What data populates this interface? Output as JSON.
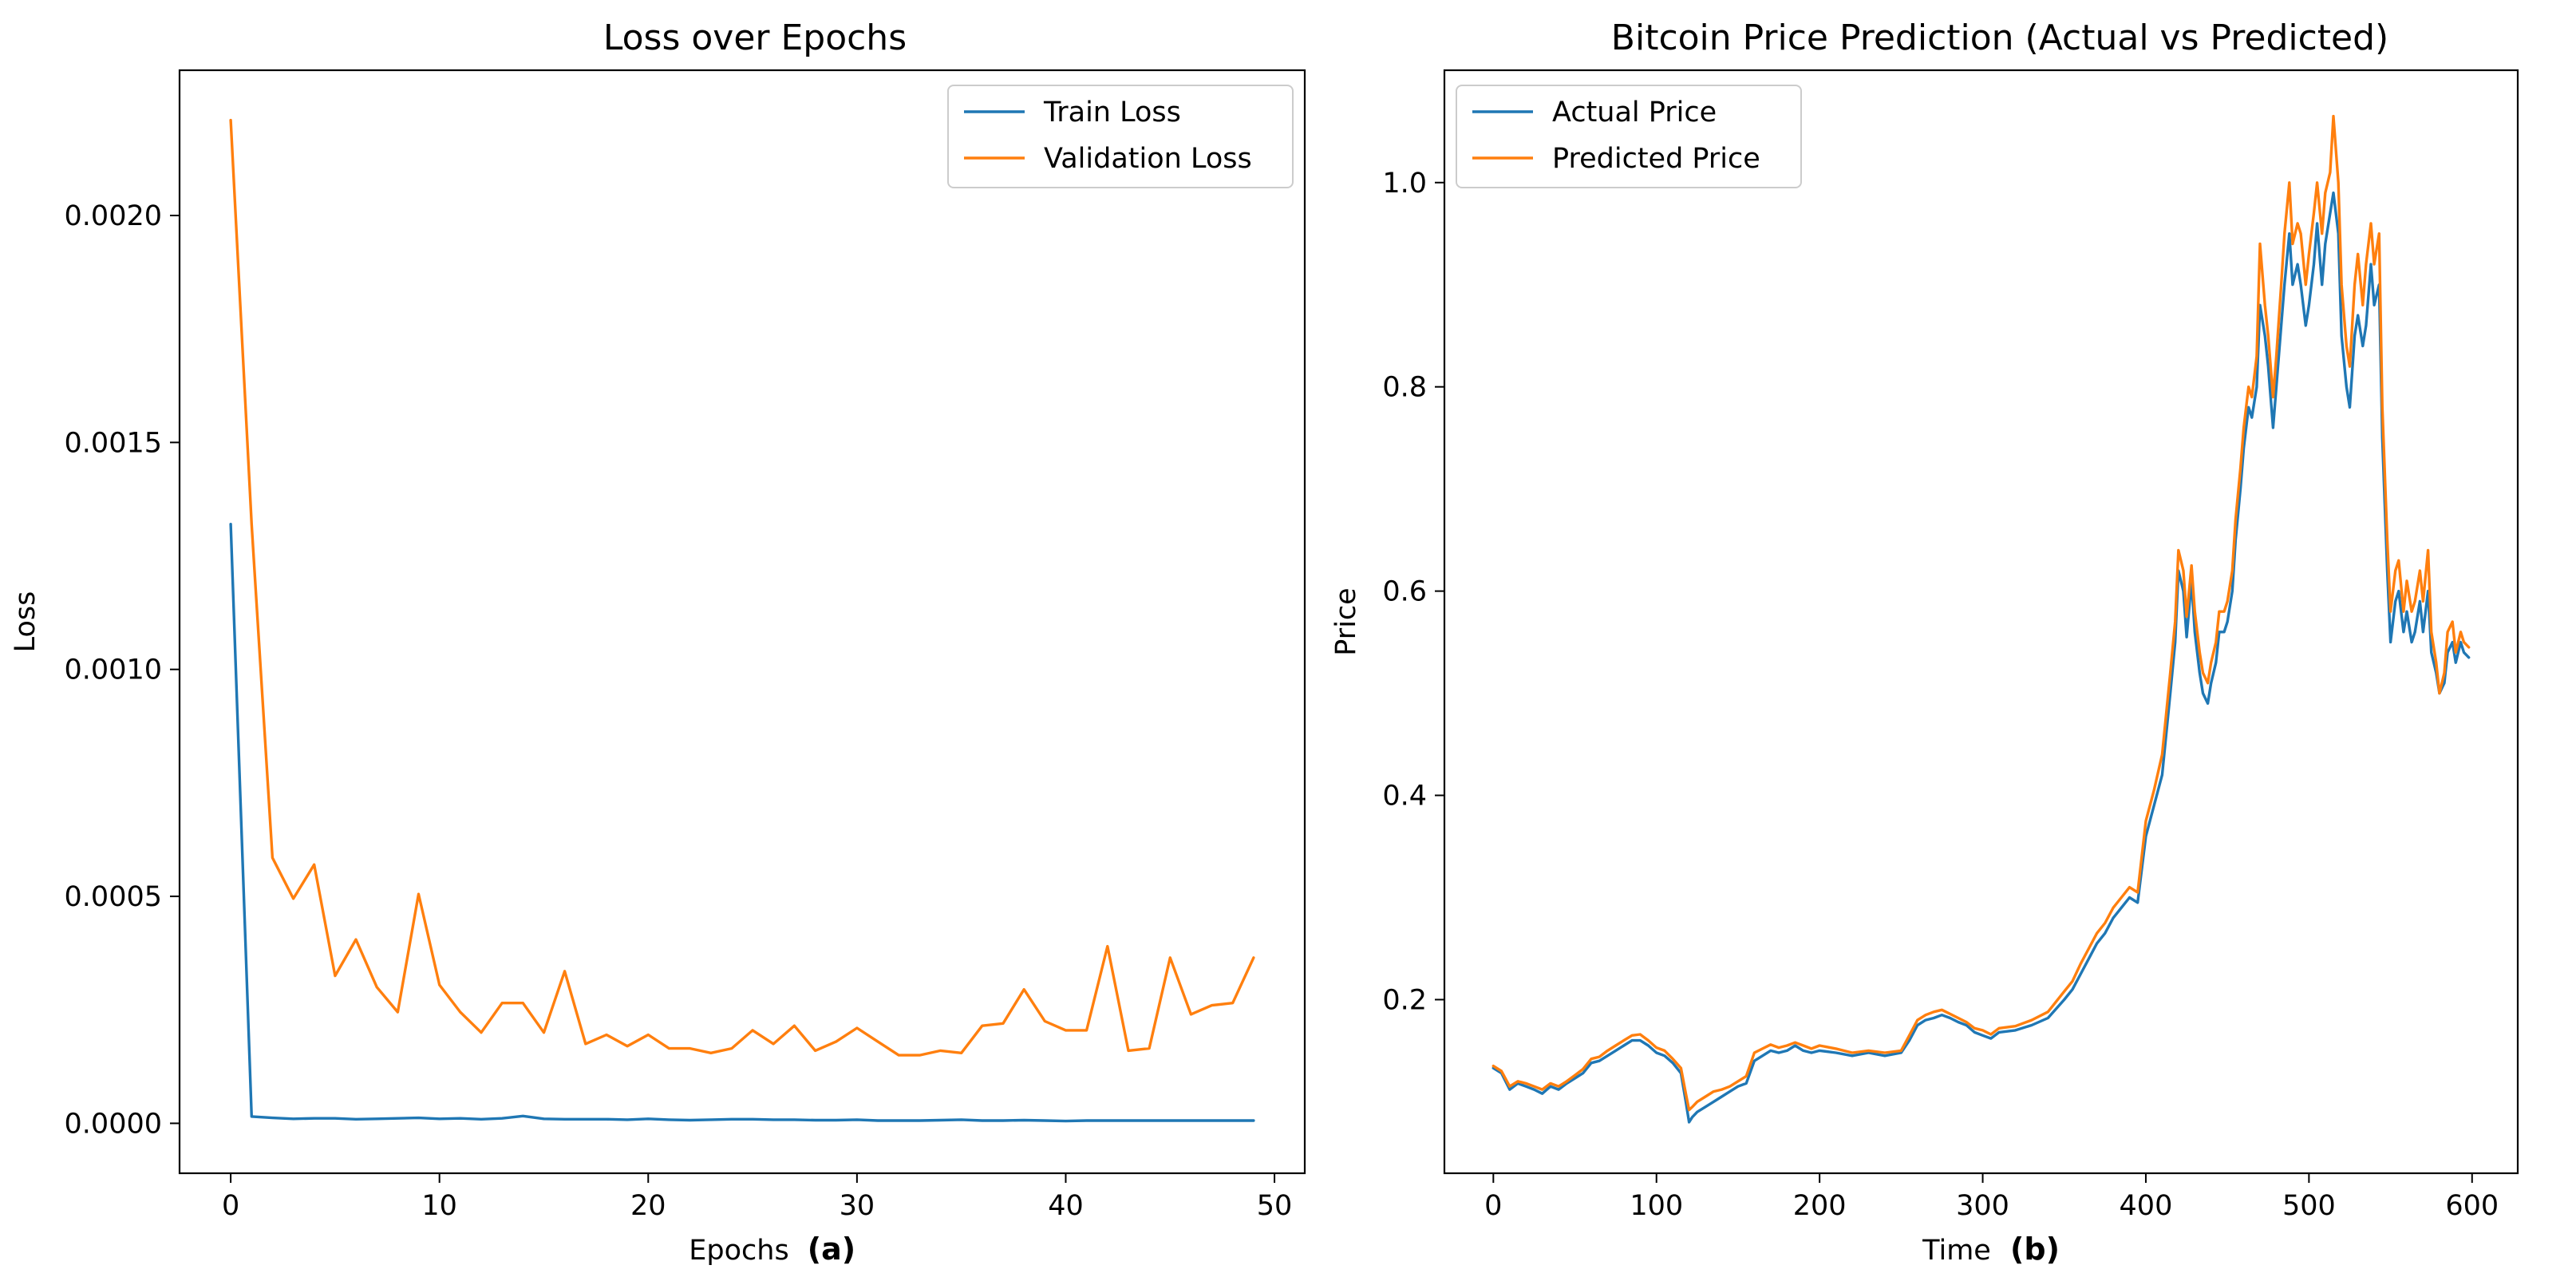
{
  "chart_data": [
    {
      "type": "line",
      "title": "Loss over Epochs",
      "xlabel": "Epochs",
      "panel_label": "(a)",
      "ylabel": "Loss",
      "xlim": [
        -2.45,
        51.45
      ],
      "ylim": [
        -0.00011,
        0.00232
      ],
      "xticks": [
        0,
        10,
        20,
        30,
        40,
        50
      ],
      "xtick_labels": [
        "0",
        "10",
        "20",
        "30",
        "40",
        "50"
      ],
      "yticks": [
        0,
        0.0005,
        0.001,
        0.0015,
        0.002
      ],
      "ytick_labels": [
        "0.0000",
        "0.0005",
        "0.0010",
        "0.0015",
        "0.0020"
      ],
      "legend_position": "upper right",
      "series": [
        {
          "name": "Train Loss",
          "color": "#1f77b4",
          "x": [
            0,
            1,
            2,
            3,
            4,
            5,
            6,
            7,
            8,
            9,
            10,
            11,
            12,
            13,
            14,
            15,
            16,
            17,
            18,
            19,
            20,
            21,
            22,
            23,
            24,
            25,
            26,
            27,
            28,
            29,
            30,
            31,
            32,
            33,
            34,
            35,
            36,
            37,
            38,
            39,
            40,
            41,
            42,
            43,
            44,
            45,
            46,
            47,
            48,
            49
          ],
          "values": [
            0.00132,
            1.5e-05,
            1.2e-05,
            1e-05,
            1.1e-05,
            1.1e-05,
            9e-06,
            1e-05,
            1.1e-05,
            1.2e-05,
            1e-05,
            1.1e-05,
            9e-06,
            1.1e-05,
            1.6e-05,
            1e-05,
            9e-06,
            9e-06,
            9e-06,
            8e-06,
            1e-05,
            8e-06,
            7e-06,
            8e-06,
            9e-06,
            9e-06,
            8e-06,
            8e-06,
            7e-06,
            7e-06,
            8e-06,
            6e-06,
            6e-06,
            6e-06,
            7e-06,
            8e-06,
            6e-06,
            6e-06,
            7e-06,
            6e-06,
            5e-06,
            6e-06,
            6e-06,
            6e-06,
            6e-06,
            6e-06,
            6e-06,
            6e-06,
            6e-06,
            6e-06
          ]
        },
        {
          "name": "Validation Loss",
          "color": "#ff7f0e",
          "x": [
            0,
            1,
            2,
            3,
            4,
            5,
            6,
            7,
            8,
            9,
            10,
            11,
            12,
            13,
            14,
            15,
            16,
            17,
            18,
            19,
            20,
            21,
            22,
            23,
            24,
            25,
            26,
            27,
            28,
            29,
            30,
            31,
            32,
            33,
            34,
            35,
            36,
            37,
            38,
            39,
            40,
            41,
            42,
            43,
            44,
            45,
            46,
            47,
            48,
            49
          ],
          "values": [
            0.00221,
            0.00132,
            0.000585,
            0.000495,
            0.00057,
            0.000325,
            0.000405,
            0.0003,
            0.000245,
            0.000505,
            0.000305,
            0.000245,
            0.0002,
            0.000265,
            0.000265,
            0.0002,
            0.000335,
            0.000175,
            0.000195,
            0.00017,
            0.000195,
            0.000165,
            0.000165,
            0.000155,
            0.000165,
            0.000205,
            0.000175,
            0.000215,
            0.00016,
            0.00018,
            0.00021,
            0.00018,
            0.00015,
            0.00015,
            0.00016,
            0.000155,
            0.000215,
            0.00022,
            0.000295,
            0.000225,
            0.000205,
            0.000205,
            0.00039,
            0.00016,
            0.000165,
            0.000365,
            0.00024,
            0.00026,
            0.000265,
            0.000365
          ]
        }
      ]
    },
    {
      "type": "line",
      "title": "Bitcoin Price Prediction (Actual vs Predicted)",
      "xlabel": "Time",
      "panel_label": "(b)",
      "ylabel": "Price",
      "xlim": [
        -30,
        628
      ],
      "ylim": [
        0.03,
        1.11
      ],
      "xticks": [
        0,
        100,
        200,
        300,
        400,
        500,
        600
      ],
      "xtick_labels": [
        "0",
        "100",
        "200",
        "300",
        "400",
        "500",
        "600"
      ],
      "yticks": [
        0.2,
        0.4,
        0.6,
        0.8,
        1.0
      ],
      "ytick_labels": [
        "0.2",
        "0.4",
        "0.6",
        "0.8",
        "1.0"
      ],
      "legend_position": "upper left",
      "series": [
        {
          "name": "Actual Price",
          "color": "#1f77b4",
          "x": [
            0,
            5,
            10,
            15,
            20,
            25,
            30,
            35,
            40,
            45,
            50,
            55,
            60,
            65,
            70,
            75,
            80,
            85,
            90,
            95,
            100,
            105,
            110,
            115,
            118,
            120,
            122,
            125,
            130,
            135,
            140,
            145,
            150,
            155,
            160,
            165,
            170,
            175,
            180,
            185,
            190,
            195,
            200,
            210,
            220,
            230,
            240,
            250,
            255,
            260,
            265,
            270,
            275,
            280,
            285,
            290,
            295,
            300,
            305,
            310,
            320,
            330,
            340,
            350,
            355,
            360,
            365,
            370,
            375,
            380,
            385,
            390,
            395,
            400,
            405,
            410,
            415,
            418,
            420,
            423,
            425,
            428,
            430,
            433,
            435,
            438,
            440,
            443,
            445,
            448,
            450,
            453,
            455,
            458,
            460,
            463,
            465,
            468,
            470,
            473,
            475,
            478,
            480,
            483,
            485,
            488,
            490,
            493,
            495,
            498,
            500,
            503,
            505,
            508,
            510,
            513,
            515,
            518,
            520,
            523,
            525,
            528,
            530,
            533,
            535,
            538,
            540,
            543,
            545,
            548,
            550,
            553,
            555,
            558,
            560,
            563,
            565,
            568,
            570,
            573,
            575,
            578,
            580,
            583,
            585,
            588,
            590,
            593,
            595,
            598
          ],
          "values": [
            0.133,
            0.128,
            0.112,
            0.118,
            0.115,
            0.112,
            0.108,
            0.115,
            0.112,
            0.118,
            0.123,
            0.128,
            0.138,
            0.14,
            0.145,
            0.15,
            0.155,
            0.16,
            0.16,
            0.155,
            0.148,
            0.145,
            0.138,
            0.128,
            0.1,
            0.08,
            0.085,
            0.09,
            0.095,
            0.1,
            0.105,
            0.11,
            0.115,
            0.118,
            0.14,
            0.145,
            0.15,
            0.148,
            0.15,
            0.155,
            0.15,
            0.148,
            0.15,
            0.148,
            0.145,
            0.148,
            0.145,
            0.148,
            0.16,
            0.175,
            0.18,
            0.182,
            0.185,
            0.182,
            0.178,
            0.175,
            0.168,
            0.165,
            0.162,
            0.168,
            0.17,
            0.175,
            0.182,
            0.2,
            0.21,
            0.225,
            0.24,
            0.255,
            0.265,
            0.28,
            0.29,
            0.3,
            0.295,
            0.36,
            0.39,
            0.42,
            0.5,
            0.55,
            0.62,
            0.6,
            0.555,
            0.61,
            0.56,
            0.52,
            0.5,
            0.49,
            0.51,
            0.53,
            0.56,
            0.56,
            0.57,
            0.6,
            0.65,
            0.7,
            0.74,
            0.78,
            0.77,
            0.8,
            0.88,
            0.85,
            0.82,
            0.76,
            0.8,
            0.86,
            0.9,
            0.95,
            0.9,
            0.92,
            0.9,
            0.86,
            0.88,
            0.92,
            0.96,
            0.9,
            0.94,
            0.97,
            0.99,
            0.95,
            0.85,
            0.8,
            0.78,
            0.85,
            0.87,
            0.84,
            0.86,
            0.92,
            0.88,
            0.9,
            0.75,
            0.62,
            0.55,
            0.59,
            0.6,
            0.56,
            0.58,
            0.55,
            0.56,
            0.59,
            0.56,
            0.6,
            0.54,
            0.52,
            0.5,
            0.51,
            0.54,
            0.55,
            0.53,
            0.55,
            0.54,
            0.535
          ]
        },
        {
          "name": "Predicted Price",
          "color": "#ff7f0e",
          "x": [
            0,
            5,
            10,
            15,
            20,
            25,
            30,
            35,
            40,
            45,
            50,
            55,
            60,
            65,
            70,
            75,
            80,
            85,
            90,
            95,
            100,
            105,
            110,
            115,
            118,
            120,
            122,
            125,
            130,
            135,
            140,
            145,
            150,
            155,
            160,
            165,
            170,
            175,
            180,
            185,
            190,
            195,
            200,
            210,
            220,
            230,
            240,
            250,
            255,
            260,
            265,
            270,
            275,
            280,
            285,
            290,
            295,
            300,
            305,
            310,
            320,
            330,
            340,
            350,
            355,
            360,
            365,
            370,
            375,
            380,
            385,
            390,
            395,
            400,
            405,
            410,
            415,
            418,
            420,
            423,
            425,
            428,
            430,
            433,
            435,
            438,
            440,
            443,
            445,
            448,
            450,
            453,
            455,
            458,
            460,
            463,
            465,
            468,
            470,
            473,
            475,
            478,
            480,
            483,
            485,
            488,
            490,
            493,
            495,
            498,
            500,
            503,
            505,
            508,
            510,
            513,
            515,
            518,
            520,
            523,
            525,
            528,
            530,
            533,
            535,
            538,
            540,
            543,
            545,
            548,
            550,
            553,
            555,
            558,
            560,
            563,
            565,
            568,
            570,
            573,
            575,
            578,
            580,
            583,
            585,
            588,
            590,
            593,
            595,
            598
          ],
          "values": [
            0.135,
            0.13,
            0.115,
            0.12,
            0.118,
            0.115,
            0.112,
            0.118,
            0.115,
            0.12,
            0.126,
            0.132,
            0.142,
            0.144,
            0.15,
            0.155,
            0.16,
            0.165,
            0.166,
            0.16,
            0.153,
            0.15,
            0.142,
            0.133,
            0.108,
            0.092,
            0.095,
            0.1,
            0.105,
            0.11,
            0.112,
            0.115,
            0.12,
            0.125,
            0.148,
            0.152,
            0.156,
            0.153,
            0.155,
            0.158,
            0.155,
            0.152,
            0.155,
            0.152,
            0.148,
            0.15,
            0.148,
            0.15,
            0.165,
            0.18,
            0.185,
            0.188,
            0.19,
            0.186,
            0.182,
            0.178,
            0.172,
            0.17,
            0.166,
            0.172,
            0.174,
            0.18,
            0.188,
            0.208,
            0.218,
            0.235,
            0.25,
            0.265,
            0.275,
            0.29,
            0.3,
            0.31,
            0.305,
            0.375,
            0.405,
            0.44,
            0.52,
            0.57,
            0.64,
            0.62,
            0.575,
            0.625,
            0.58,
            0.54,
            0.52,
            0.51,
            0.53,
            0.55,
            0.58,
            0.58,
            0.59,
            0.62,
            0.67,
            0.72,
            0.76,
            0.8,
            0.79,
            0.83,
            0.94,
            0.88,
            0.85,
            0.79,
            0.83,
            0.9,
            0.95,
            1.0,
            0.94,
            0.96,
            0.95,
            0.9,
            0.93,
            0.97,
            1.0,
            0.95,
            0.99,
            1.01,
            1.065,
            1.0,
            0.9,
            0.84,
            0.82,
            0.9,
            0.93,
            0.88,
            0.92,
            0.96,
            0.92,
            0.95,
            0.78,
            0.65,
            0.58,
            0.62,
            0.63,
            0.58,
            0.61,
            0.58,
            0.59,
            0.62,
            0.59,
            0.64,
            0.56,
            0.53,
            0.5,
            0.52,
            0.56,
            0.57,
            0.54,
            0.56,
            0.55,
            0.545
          ]
        }
      ]
    }
  ]
}
